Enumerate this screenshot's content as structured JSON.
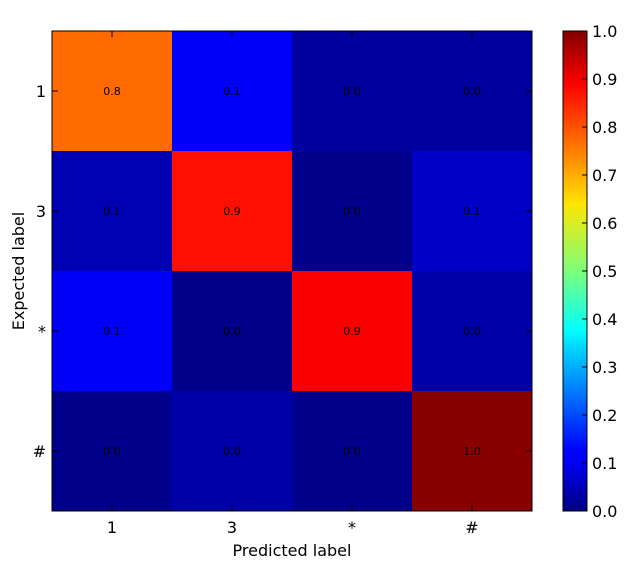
{
  "chart_data": {
    "type": "heatmap",
    "xlabel": "Predicted label",
    "ylabel": "Expected label",
    "x_categories": [
      "1",
      "3",
      "*",
      "#"
    ],
    "y_categories": [
      "1",
      "3",
      "*",
      "#"
    ],
    "values": [
      [
        0.8,
        0.1,
        0.0,
        0.0
      ],
      [
        0.1,
        0.9,
        0.0,
        0.1
      ],
      [
        0.1,
        0.0,
        0.9,
        0.0
      ],
      [
        0.0,
        0.0,
        0.0,
        1.0
      ]
    ],
    "cell_labels": [
      [
        "0.8",
        "0.1",
        "0.0",
        "0.0"
      ],
      [
        "0.1",
        "0.9",
        "0.0",
        "0.1"
      ],
      [
        "0.1",
        "0.0",
        "0.9",
        "0.0"
      ],
      [
        "0.0",
        "0.0",
        "0.0",
        "1.0"
      ]
    ],
    "fill_values": [
      [
        0.77,
        0.12,
        0.03,
        0.03
      ],
      [
        0.05,
        0.86,
        0.01,
        0.07
      ],
      [
        0.12,
        0.01,
        0.88,
        0.04
      ],
      [
        0.01,
        0.04,
        0.01,
        0.99
      ]
    ],
    "colormap": "jet",
    "colorbar": {
      "range": [
        0.0,
        1.0
      ],
      "ticks": [
        "0.0",
        "0.1",
        "0.2",
        "0.3",
        "0.4",
        "0.5",
        "0.6",
        "0.7",
        "0.8",
        "0.9",
        "1.0"
      ]
    },
    "grid": false
  }
}
